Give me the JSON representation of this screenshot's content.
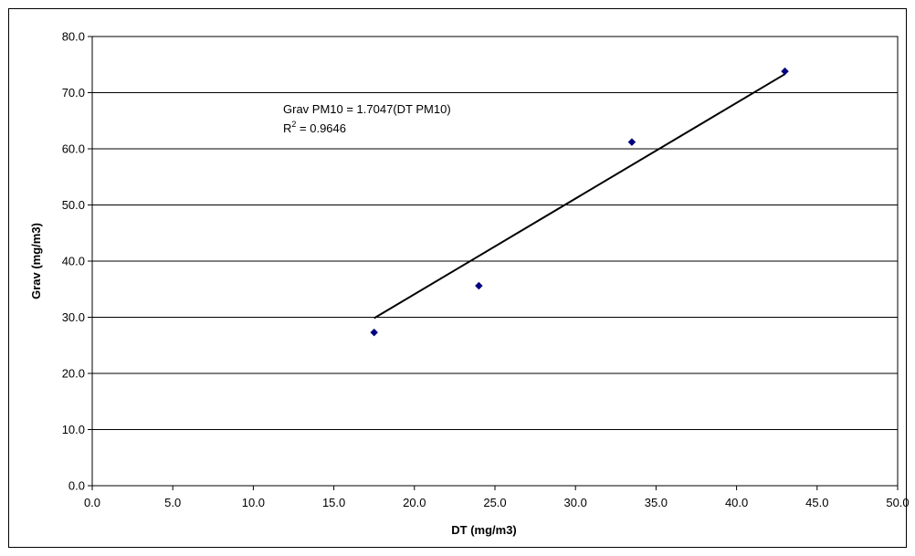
{
  "chart_data": {
    "type": "scatter",
    "title": "",
    "xlabel": "DT (mg/m3)",
    "ylabel": "Grav (mg/m3)",
    "xlim": [
      0,
      50
    ],
    "ylim": [
      0,
      80
    ],
    "x_ticks": [
      "0.0",
      "5.0",
      "10.0",
      "15.0",
      "20.0",
      "25.0",
      "30.0",
      "35.0",
      "40.0",
      "45.0",
      "50.0"
    ],
    "y_ticks": [
      "0.0",
      "10.0",
      "20.0",
      "30.0",
      "40.0",
      "50.0",
      "60.0",
      "70.0",
      "80.0"
    ],
    "grid": "horizontal",
    "legend": "none",
    "series": [
      {
        "marker": "diamond",
        "color": "#000080",
        "points": [
          {
            "x": 17.5,
            "y": 27.3
          },
          {
            "x": 24.0,
            "y": 35.6
          },
          {
            "x": 33.5,
            "y": 61.2
          },
          {
            "x": 43.0,
            "y": 73.8
          }
        ]
      }
    ],
    "trendline": {
      "type": "linear-through-origin",
      "slope": 1.7047,
      "x_start": 17.5,
      "x_end": 43.0,
      "color": "#000000"
    },
    "annotation": {
      "equation": "Grav PM10 = 1.7047(DT PM10)",
      "r2_prefix": "R",
      "r2_superscript": "2",
      "r2_value": " = 0.9646"
    }
  }
}
